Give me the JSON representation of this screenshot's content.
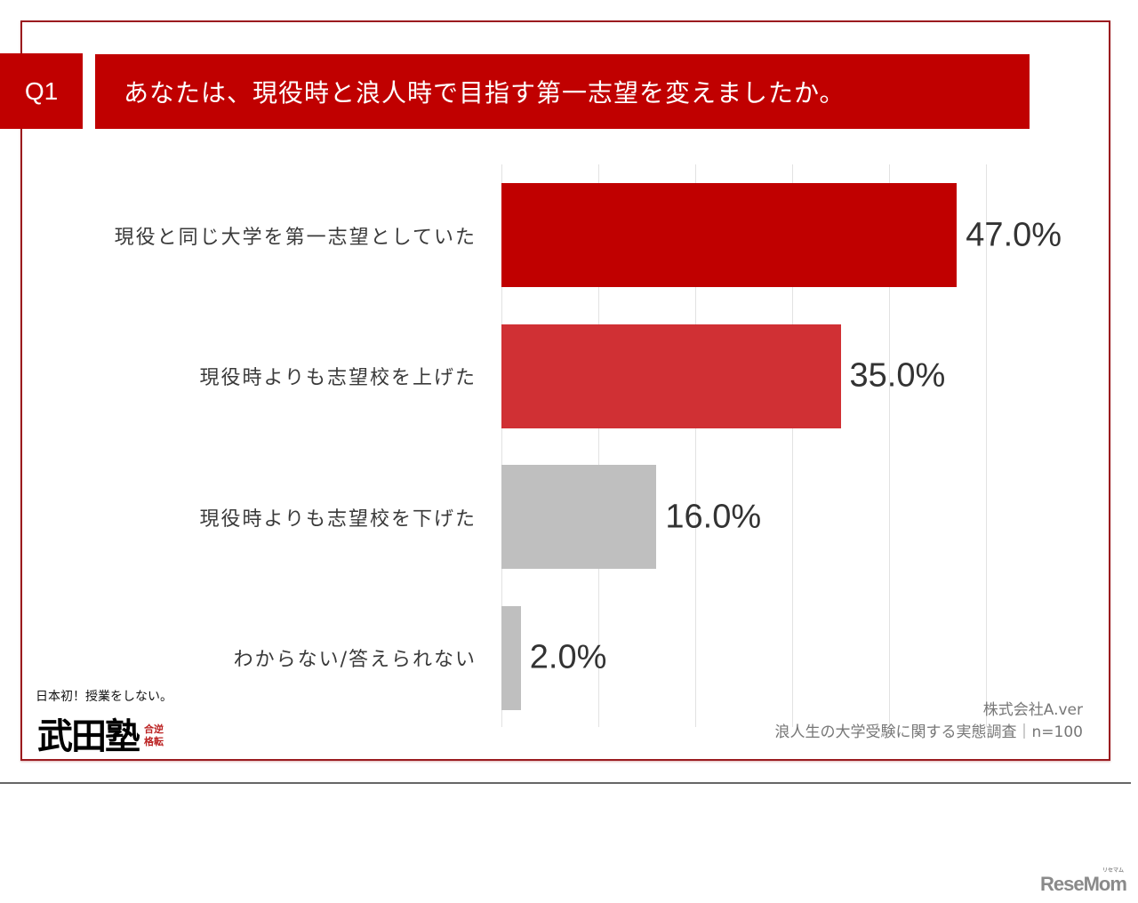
{
  "question": {
    "number": "Q1",
    "text": "あなたは、現役時と浪人時で目指す第一志望を変えましたか。"
  },
  "chart_data": {
    "type": "bar",
    "orientation": "horizontal",
    "title": "あなたは、現役時と浪人時で目指す第一志望を変えましたか。",
    "categories": [
      "現役と同じ大学を第一志望としていた",
      "現役時よりも志望校を上げた",
      "現役時よりも志望校を下げた",
      "わからない/答えられない"
    ],
    "values": [
      47.0,
      35.0,
      16.0,
      2.0
    ],
    "value_labels": [
      "47.0%",
      "35.0%",
      "16.0%",
      "2.0%"
    ],
    "colors": [
      "#c00000",
      "#d03034",
      "#bfbfbf",
      "#bfbfbf"
    ],
    "xlabel": "",
    "ylabel": "",
    "xlim": [
      0,
      60
    ],
    "grid": true,
    "grid_step": 10,
    "axis_ticks_visible": false,
    "legend": null,
    "unit": "%"
  },
  "source": {
    "line1": "株式会社A.ver",
    "line2": "浪人生の大学受験に関する実態調査｜n=100"
  },
  "logo": {
    "tagline": "日本初！授業をしない。",
    "name": "武田塾",
    "stamp": [
      "逆",
      "転",
      "合",
      "格"
    ]
  },
  "watermark": {
    "text": "ReseMom",
    "sub": "リセマム"
  },
  "colors": {
    "accent": "#c00000",
    "frame": "#9b1b1f",
    "grid": "#e2e2e2"
  }
}
